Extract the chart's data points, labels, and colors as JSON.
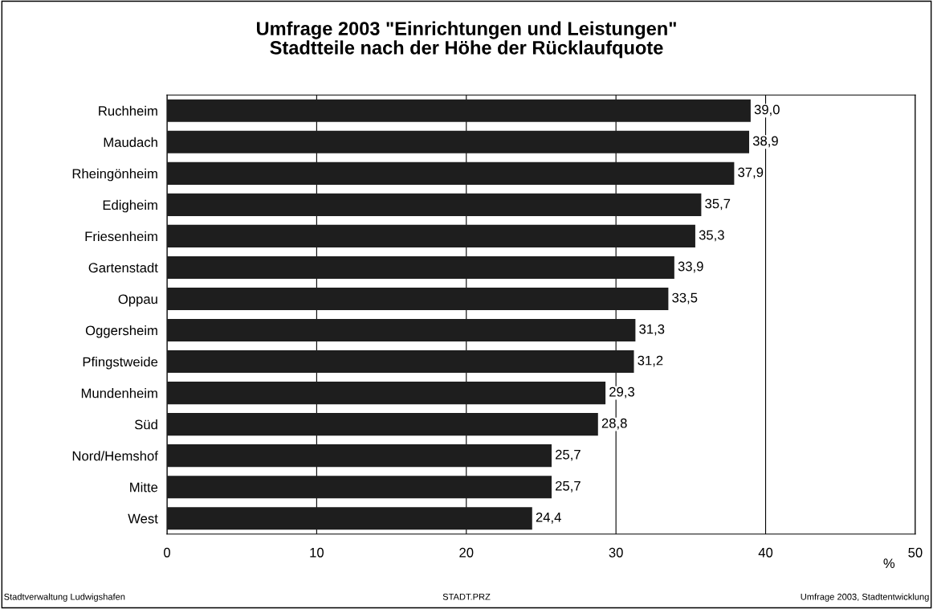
{
  "chart_data": {
    "type": "bar",
    "orientation": "horizontal",
    "title": "Umfrage 2003 \"Einrichtungen und Leistungen\"\nStadtteile nach der Höhe der Rücklaufquote",
    "xlabel": "%",
    "categories": [
      "Ruchheim",
      "Maudach",
      "Rheingönheim",
      "Edigheim",
      "Friesenheim",
      "Gartenstadt",
      "Oppau",
      "Oggersheim",
      "Pfingstweide",
      "Mundenheim",
      "Süd",
      "Nord/Hemshof",
      "Mitte",
      "West"
    ],
    "values": [
      39.0,
      38.9,
      37.9,
      35.7,
      35.3,
      33.9,
      33.5,
      31.3,
      31.2,
      29.3,
      28.8,
      25.7,
      25.7,
      24.4
    ],
    "value_labels": [
      "39,0",
      "38,9",
      "37,9",
      "35,7",
      "35,3",
      "33,9",
      "33,5",
      "31,3",
      "31,2",
      "29,3",
      "28,8",
      "25,7",
      "25,7",
      "24,4"
    ],
    "color": "#1e1e1e",
    "xlim": [
      0,
      50
    ],
    "xticks": [
      0,
      10,
      20,
      30,
      40,
      50
    ],
    "grid": "x",
    "annotations": [
      "Stadtverwaltung Ludwigshafen",
      "STADT.PRZ",
      "Umfrage 2003, Stadtentwicklung"
    ]
  }
}
